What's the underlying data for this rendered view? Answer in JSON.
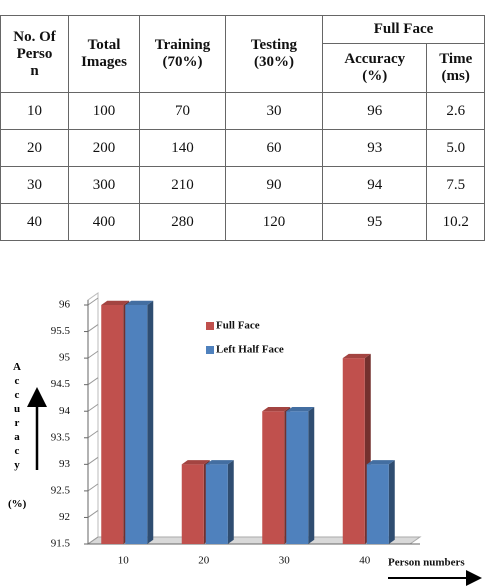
{
  "table": {
    "headers": [
      [
        "No. Of",
        "Perso",
        "n"
      ],
      [
        "Total",
        "Images"
      ],
      [
        "Training",
        "(70%)"
      ],
      [
        "Testing",
        "(30%)"
      ]
    ],
    "group": "Full Face",
    "subheaders": [
      [
        "Accuracy",
        "(%)"
      ],
      [
        "Time",
        "(ms)"
      ]
    ],
    "rows": [
      [
        "10",
        "100",
        "70",
        "30",
        "96",
        "2.6"
      ],
      [
        "20",
        "200",
        "140",
        "60",
        "93",
        "5.0"
      ],
      [
        "30",
        "300",
        "210",
        "90",
        "94",
        "7.5"
      ],
      [
        "40",
        "400",
        "280",
        "120",
        "95",
        "10.2"
      ]
    ]
  },
  "chart_data": {
    "type": "bar3d",
    "xlabel": "Person numbers",
    "ylabel": "Accuracy",
    "ylabel_unit": "(%)",
    "categories": [
      "10",
      "20",
      "30",
      "40"
    ],
    "series": [
      {
        "name": "Full Face",
        "color": "#c0504d",
        "values": [
          96,
          93,
          94,
          95
        ]
      },
      {
        "name": "Left Half Face",
        "color": "#4f81bd",
        "values": [
          96,
          93,
          94,
          93
        ]
      }
    ],
    "ylim": [
      91.5,
      96
    ],
    "yticks": [
      91.5,
      92,
      92.5,
      93,
      93.5,
      94,
      94.5,
      95,
      95.5,
      96
    ],
    "grid": true
  }
}
